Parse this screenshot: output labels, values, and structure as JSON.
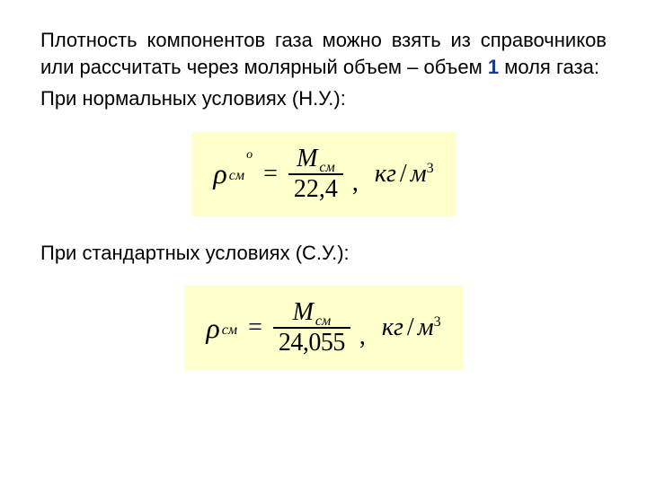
{
  "text": {
    "p1": "Плотность компонентов газа можно взять из справочников или рассчитать через молярный объем – объем ",
    "highlight": "1",
    "p1_tail": " моля газа:",
    "p2": "При нормальных условиях (Н.У.):",
    "p3": "При стандартных условиях (С.У.):"
  },
  "formula1": {
    "rho": "ρ",
    "sub": "см",
    "sup": "о",
    "eq": "=",
    "num_M": "M",
    "num_sub": "см",
    "den": "22,4",
    "comma": ",",
    "unit_kg": "кг",
    "slash": "/",
    "unit_m": "м",
    "cube": "3",
    "background": "#ffffcc"
  },
  "formula2": {
    "rho": "ρ",
    "sub": "см",
    "eq": "=",
    "num_M": "M",
    "num_sub": "см",
    "den": "24,055",
    "comma": ",",
    "unit_kg": "кг",
    "slash": "/",
    "unit_m": "м",
    "cube": "3",
    "background": "#ffffcc"
  },
  "style": {
    "page_bg": "#ffffff",
    "text_color": "#000000",
    "highlight_color": "#1a3d8f",
    "formula_bg": "#ffffcc",
    "body_font": "Arial",
    "formula_font": "Times New Roman",
    "body_fontsize": 22,
    "formula_fontsize": 30
  }
}
